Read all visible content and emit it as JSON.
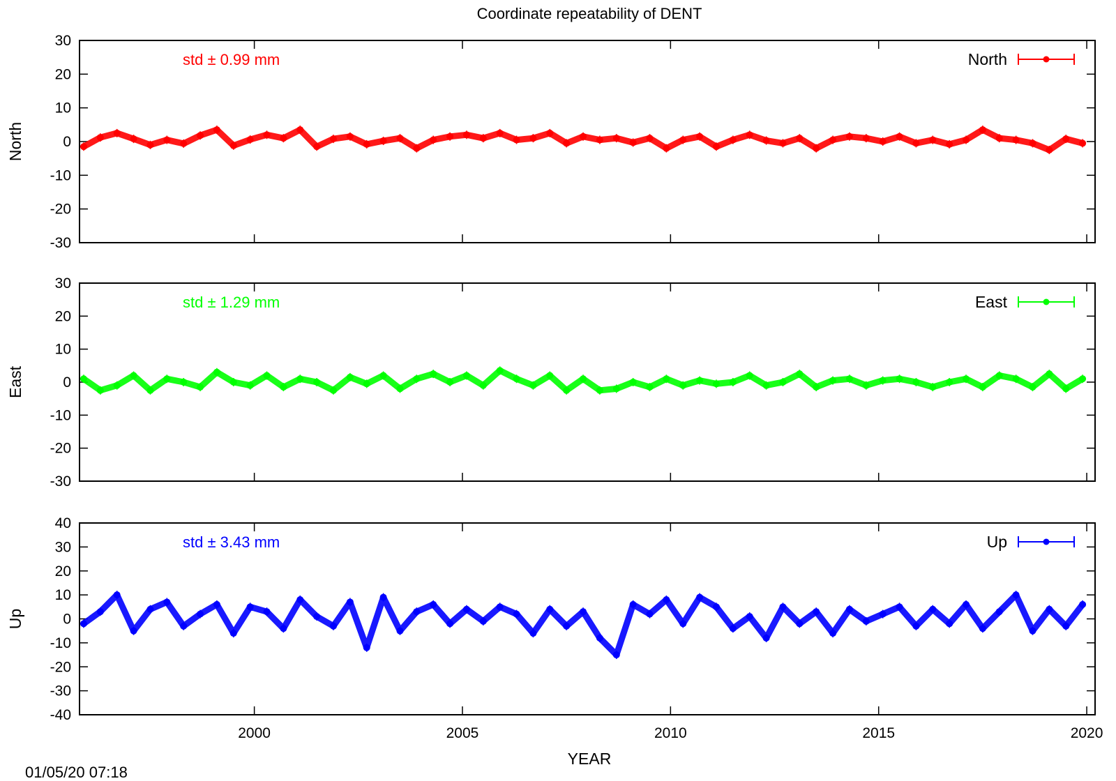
{
  "chart_data": {
    "type": "scatter",
    "title": "Coordinate repeatability of DENT",
    "xlabel": "YEAR",
    "xlim": [
      1995.8,
      2020.2
    ],
    "x_ticks": [
      2000,
      2005,
      2010,
      2015,
      2020
    ],
    "x_tick_labels": [
      "2000",
      "2005",
      "2010",
      "2015",
      "2020"
    ],
    "grid": false,
    "timestamp": "01/05/20 07:18",
    "panels": [
      {
        "ylabel": "North",
        "ylim": [
          -30,
          30
        ],
        "y_ticks": [
          -30,
          -20,
          -10,
          0,
          10,
          20,
          30
        ],
        "y_tick_labels": [
          "-30",
          "-20",
          "-10",
          "0",
          "10",
          "20",
          "30"
        ],
        "std_text": "std ± 0.99 mm",
        "legend": "North",
        "legend_position": "top-right",
        "color": "#ff0000",
        "series": {
          "name": "North",
          "x": [
            1995.9,
            1996.3,
            1996.7,
            1997.1,
            1997.5,
            1997.9,
            1998.3,
            1998.7,
            1999.1,
            1999.5,
            1999.9,
            2000.3,
            2000.7,
            2001.1,
            2001.5,
            2001.9,
            2002.3,
            2002.7,
            2003.1,
            2003.5,
            2003.9,
            2004.3,
            2004.7,
            2005.1,
            2005.5,
            2005.9,
            2006.3,
            2006.7,
            2007.1,
            2007.5,
            2007.9,
            2008.3,
            2008.7,
            2009.1,
            2009.5,
            2009.9,
            2010.3,
            2010.7,
            2011.1,
            2011.5,
            2011.9,
            2012.3,
            2012.7,
            2013.1,
            2013.5,
            2013.9,
            2014.3,
            2014.7,
            2015.1,
            2015.5,
            2015.9,
            2016.3,
            2016.7,
            2017.1,
            2017.5,
            2017.9,
            2018.3,
            2018.7,
            2019.1,
            2019.5,
            2019.9
          ],
          "y": [
            -1.5,
            1.2,
            2.5,
            0.8,
            -1.0,
            0.5,
            -0.6,
            1.8,
            3.5,
            -1.2,
            0.6,
            2.0,
            1.0,
            3.5,
            -1.5,
            0.8,
            1.5,
            -0.8,
            0.2,
            1.0,
            -2.0,
            0.5,
            1.5,
            2.0,
            1.0,
            2.5,
            0.5,
            1.0,
            2.5,
            -0.5,
            1.5,
            0.5,
            1.0,
            -0.3,
            1.0,
            -2.0,
            0.5,
            1.5,
            -1.5,
            0.5,
            2.0,
            0.3,
            -0.5,
            1.0,
            -2.0,
            0.5,
            1.5,
            1.0,
            0.0,
            1.5,
            -0.5,
            0.5,
            -0.8,
            0.5,
            3.5,
            1.0,
            0.5,
            -0.5,
            -2.5,
            0.8,
            -0.5
          ]
        }
      },
      {
        "ylabel": "East",
        "ylim": [
          -30,
          30
        ],
        "y_ticks": [
          -30,
          -20,
          -10,
          0,
          10,
          20,
          30
        ],
        "y_tick_labels": [
          "-30",
          "-20",
          "-10",
          "0",
          "10",
          "20",
          "30"
        ],
        "std_text": "std ± 1.29 mm",
        "legend": "East",
        "legend_position": "top-right",
        "color": "#00ff00",
        "series": {
          "name": "East",
          "x": [
            1995.9,
            1996.3,
            1996.7,
            1997.1,
            1997.5,
            1997.9,
            1998.3,
            1998.7,
            1999.1,
            1999.5,
            1999.9,
            2000.3,
            2000.7,
            2001.1,
            2001.5,
            2001.9,
            2002.3,
            2002.7,
            2003.1,
            2003.5,
            2003.9,
            2004.3,
            2004.7,
            2005.1,
            2005.5,
            2005.9,
            2006.3,
            2006.7,
            2007.1,
            2007.5,
            2007.9,
            2008.3,
            2008.7,
            2009.1,
            2009.5,
            2009.9,
            2010.3,
            2010.7,
            2011.1,
            2011.5,
            2011.9,
            2012.3,
            2012.7,
            2013.1,
            2013.5,
            2013.9,
            2014.3,
            2014.7,
            2015.1,
            2015.5,
            2015.9,
            2016.3,
            2016.7,
            2017.1,
            2017.5,
            2017.9,
            2018.3,
            2018.7,
            2019.1,
            2019.5,
            2019.9
          ],
          "y": [
            1.0,
            -2.5,
            -1.0,
            2.0,
            -2.5,
            1.0,
            0.0,
            -1.5,
            3.0,
            0.0,
            -1.0,
            2.0,
            -1.5,
            1.0,
            0.0,
            -2.5,
            1.5,
            -0.5,
            2.0,
            -2.0,
            1.0,
            2.5,
            0.0,
            2.0,
            -1.0,
            3.5,
            1.0,
            -1.0,
            2.0,
            -2.5,
            1.0,
            -2.5,
            -2.0,
            0.0,
            -1.5,
            1.0,
            -1.0,
            0.5,
            -0.5,
            0.0,
            2.0,
            -1.0,
            0.0,
            2.5,
            -1.5,
            0.5,
            1.0,
            -1.0,
            0.5,
            1.0,
            0.0,
            -1.5,
            0.0,
            1.0,
            -1.5,
            2.0,
            1.0,
            -1.5,
            2.5,
            -2.0,
            1.0
          ]
        }
      },
      {
        "ylabel": "Up",
        "ylim": [
          -40,
          40
        ],
        "y_ticks": [
          -40,
          -30,
          -20,
          -10,
          0,
          10,
          20,
          30,
          40
        ],
        "y_tick_labels": [
          "-40",
          "-30",
          "-20",
          "-10",
          "0",
          "10",
          "20",
          "30",
          "40"
        ],
        "std_text": "std ± 3.43 mm",
        "legend": "Up",
        "legend_position": "top-right",
        "color": "#0000ff",
        "series": {
          "name": "Up",
          "x": [
            1995.9,
            1996.3,
            1996.7,
            1997.1,
            1997.5,
            1997.9,
            1998.3,
            1998.7,
            1999.1,
            1999.5,
            1999.9,
            2000.3,
            2000.7,
            2001.1,
            2001.5,
            2001.9,
            2002.3,
            2002.7,
            2003.1,
            2003.5,
            2003.9,
            2004.3,
            2004.7,
            2005.1,
            2005.5,
            2005.9,
            2006.3,
            2006.7,
            2007.1,
            2007.5,
            2007.9,
            2008.3,
            2008.7,
            2009.1,
            2009.5,
            2009.9,
            2010.3,
            2010.7,
            2011.1,
            2011.5,
            2011.9,
            2012.3,
            2012.7,
            2013.1,
            2013.5,
            2013.9,
            2014.3,
            2014.7,
            2015.1,
            2015.5,
            2015.9,
            2016.3,
            2016.7,
            2017.1,
            2017.5,
            2017.9,
            2018.3,
            2018.7,
            2019.1,
            2019.5,
            2019.9
          ],
          "y": [
            -2,
            3,
            10,
            -5,
            4,
            7,
            -3,
            2,
            6,
            -6,
            5,
            3,
            -4,
            8,
            1,
            -3,
            7,
            -12,
            9,
            -5,
            3,
            6,
            -2,
            4,
            -1,
            5,
            2,
            -6,
            4,
            -3,
            3,
            -8,
            -15,
            6,
            2,
            8,
            -2,
            9,
            5,
            -4,
            1,
            -8,
            5,
            -2,
            3,
            -6,
            4,
            -1,
            2,
            5,
            -3,
            4,
            -2,
            6,
            -4,
            3,
            10,
            -5,
            4,
            -3,
            6
          ]
        }
      }
    ]
  }
}
